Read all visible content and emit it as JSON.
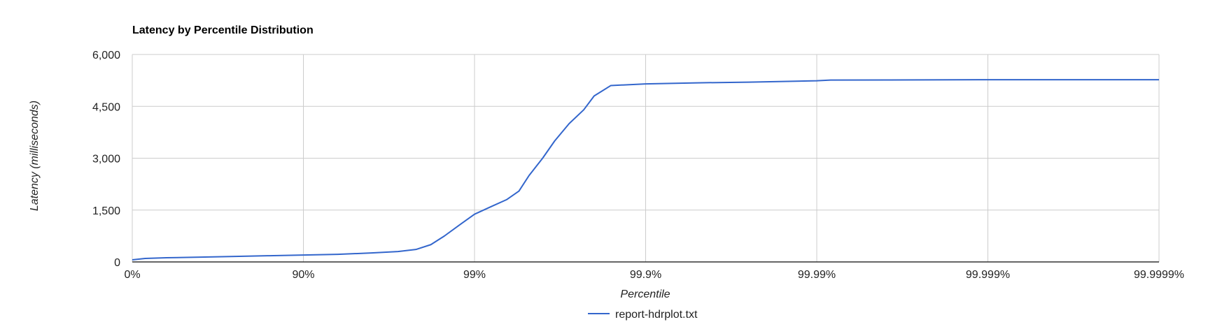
{
  "chart_data": {
    "type": "line",
    "title": "Latency by Percentile Distribution",
    "xlabel": "Percentile",
    "ylabel": "Latency (milliseconds)",
    "x_scale": "log",
    "x_tick_labels": [
      "0%",
      "90%",
      "99%",
      "99.9%",
      "99.99%",
      "99.999%",
      "99.9999%"
    ],
    "y_ticks": [
      0,
      1500,
      3000,
      4500,
      6000
    ],
    "y_tick_labels": [
      "0",
      "1,500",
      "3,000",
      "4,500",
      "6,000"
    ],
    "ylim": [
      0,
      6000
    ],
    "grid": true,
    "legend_position": "bottom",
    "colors": {
      "line": "#3366cc",
      "grid": "#cccccc",
      "baseline": "#333333"
    },
    "series": [
      {
        "name": "report-hdrplot.txt",
        "color": "#3366cc",
        "points": [
          {
            "x": "0%",
            "y": 60
          },
          {
            "x": "15.9%",
            "y": 100
          },
          {
            "x": "36.9%",
            "y": 120
          },
          {
            "x": "60.2%",
            "y": 140
          },
          {
            "x": "74.9%",
            "y": 160
          },
          {
            "x": "84.2%",
            "y": 180
          },
          {
            "x": "90%",
            "y": 200
          },
          {
            "x": "93.7%",
            "y": 220
          },
          {
            "x": "96.0%",
            "y": 260
          },
          {
            "x": "97.2%",
            "y": 300
          },
          {
            "x": "97.8%",
            "y": 360
          },
          {
            "x": "98.2%",
            "y": 500
          },
          {
            "x": "98.5%",
            "y": 750
          },
          {
            "x": "98.8%",
            "y": 1100
          },
          {
            "x": "99%",
            "y": 1380
          },
          {
            "x": "99.2%",
            "y": 1600
          },
          {
            "x": "99.35%",
            "y": 1800
          },
          {
            "x": "99.45%",
            "y": 2050
          },
          {
            "x": "99.52%",
            "y": 2500
          },
          {
            "x": "99.60%",
            "y": 3000
          },
          {
            "x": "99.66%",
            "y": 3500
          },
          {
            "x": "99.72%",
            "y": 4000
          },
          {
            "x": "99.77%",
            "y": 4400
          },
          {
            "x": "99.80%",
            "y": 4800
          },
          {
            "x": "99.84%",
            "y": 5100
          },
          {
            "x": "99.9%",
            "y": 5150
          },
          {
            "x": "99.95%",
            "y": 5180
          },
          {
            "x": "99.975%",
            "y": 5200
          },
          {
            "x": "99.99%",
            "y": 5240
          },
          {
            "x": "99.9917%",
            "y": 5260
          },
          {
            "x": "99.999%",
            "y": 5270
          },
          {
            "x": "99.9999%",
            "y": 5270
          }
        ]
      }
    ]
  }
}
